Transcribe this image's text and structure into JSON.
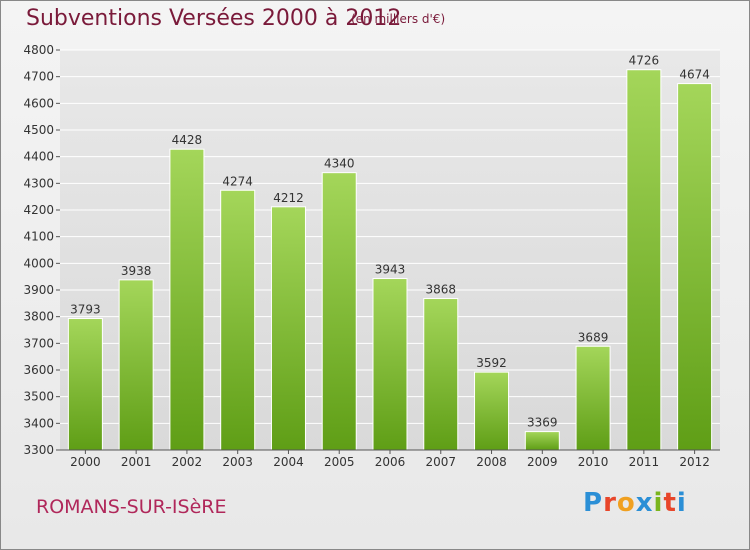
{
  "header": {
    "title": "Subventions Versées 2000 à 2012",
    "subtitle": "(en milliers d'€)"
  },
  "footer": {
    "place": "ROMANS-SUR-ISèRE",
    "logo": "Proxiti"
  },
  "colors": {
    "bar_light": "#a4d65a",
    "bar_dark": "#5f9e16",
    "title": "#7a1a3a",
    "place": "#b0275a"
  },
  "chart_data": {
    "type": "bar",
    "title": "Subventions Versées 2000 à 2012",
    "xlabel": "",
    "ylabel": "",
    "categories": [
      "2000",
      "2001",
      "2002",
      "2003",
      "2004",
      "2005",
      "2006",
      "2007",
      "2008",
      "2009",
      "2010",
      "2011",
      "2012"
    ],
    "values": [
      3793,
      3938,
      4428,
      4274,
      4212,
      4340,
      3943,
      3868,
      3592,
      3369,
      3689,
      4726,
      4674
    ],
    "ylim": [
      3300,
      4800
    ],
    "yticks": [
      3300,
      3400,
      3500,
      3600,
      3700,
      3800,
      3900,
      4000,
      4100,
      4200,
      4300,
      4400,
      4500,
      4600,
      4700,
      4800
    ],
    "grid": true,
    "legend": "none"
  }
}
